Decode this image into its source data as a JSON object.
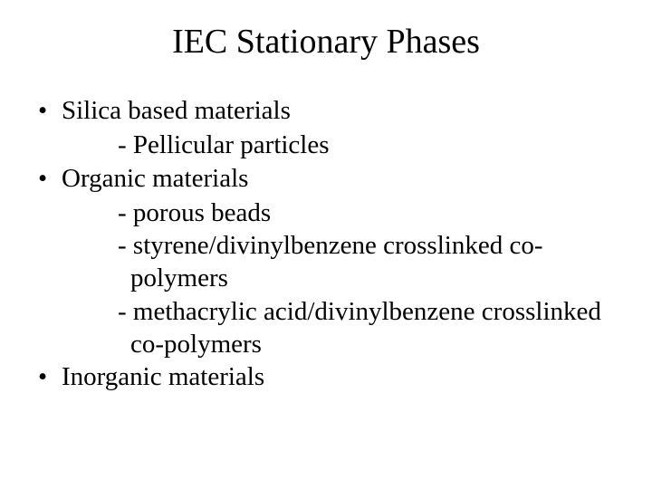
{
  "slide": {
    "title": "IEC Stationary Phases",
    "bullets": [
      {
        "text": "Silica based materials",
        "subs": [
          "- Pellicular particles"
        ]
      },
      {
        "text": "Organic materials",
        "subs": [
          "- porous beads",
          "- styrene/divinylbenzene crosslinked co-polymers",
          "- methacrylic acid/divinylbenzene crosslinked co-polymers"
        ]
      },
      {
        "text": "Inorganic materials",
        "subs": []
      }
    ],
    "bullet_char": "•",
    "colors": {
      "background": "#ffffff",
      "text": "#000000"
    },
    "fonts": {
      "family": "Times New Roman",
      "title_size_pt": 38,
      "body_size_pt": 29
    }
  }
}
